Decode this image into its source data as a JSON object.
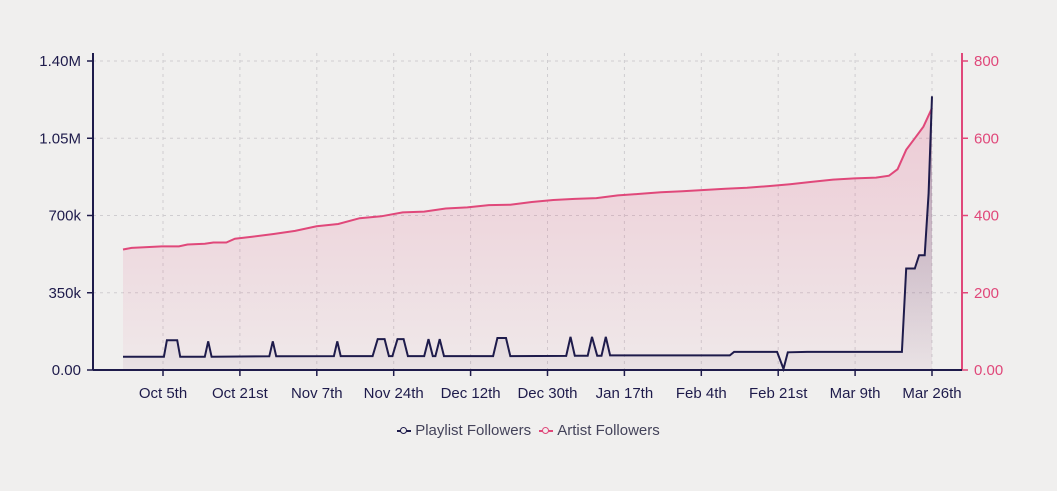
{
  "chart_data": {
    "type": "area",
    "x_ticks": [
      "Oct 5th",
      "Oct 21st",
      "Nov 7th",
      "Nov 24th",
      "Dec 12th",
      "Dec 30th",
      "Jan 17th",
      "Feb 4th",
      "Feb 21st",
      "Mar 9th",
      "Mar 26th"
    ],
    "y_left": {
      "ticks": [
        "0.00",
        "350k",
        "700k",
        "1.05M",
        "1.40M"
      ],
      "range": [
        0,
        1400000
      ]
    },
    "y_right": {
      "ticks": [
        "0.00",
        "200",
        "400",
        "600",
        "800"
      ],
      "range": [
        0,
        800
      ]
    },
    "x_range_days": [
      0,
      188
    ],
    "grid": true,
    "legend_position": "bottom",
    "series": [
      {
        "name": "Playlist Followers",
        "axis": "left",
        "color": "#1e1b4b",
        "points": [
          [
            0,
            60000
          ],
          [
            9.5,
            60000
          ],
          [
            10.2,
            135000
          ],
          [
            12.6,
            135000
          ],
          [
            13.3,
            60000
          ],
          [
            19,
            60000
          ],
          [
            19.8,
            130000
          ],
          [
            20.6,
            60000
          ],
          [
            34,
            62000
          ],
          [
            34.8,
            130000
          ],
          [
            35.6,
            62000
          ],
          [
            49,
            63000
          ],
          [
            49.8,
            130000
          ],
          [
            50.6,
            63000
          ],
          [
            58,
            63000
          ],
          [
            59.2,
            140000
          ],
          [
            60.8,
            140000
          ],
          [
            61.8,
            63000
          ],
          [
            62.6,
            63000
          ],
          [
            63.8,
            140000
          ],
          [
            65.2,
            140000
          ],
          [
            66.2,
            63000
          ],
          [
            70,
            63000
          ],
          [
            71,
            140000
          ],
          [
            72,
            63000
          ],
          [
            72.6,
            63000
          ],
          [
            73.6,
            140000
          ],
          [
            74.6,
            63000
          ],
          [
            86,
            63000
          ],
          [
            87,
            145000
          ],
          [
            89,
            145000
          ],
          [
            90,
            63000
          ],
          [
            103,
            64000
          ],
          [
            104,
            150000
          ],
          [
            105,
            65000
          ],
          [
            108,
            65000
          ],
          [
            109,
            150000
          ],
          [
            110.2,
            65000
          ],
          [
            111.2,
            65000
          ],
          [
            112.2,
            150000
          ],
          [
            113.2,
            66000
          ],
          [
            135,
            66000
          ],
          [
            141,
            66000
          ],
          [
            142,
            82000
          ],
          [
            152,
            82000
          ],
          [
            153.5,
            5000
          ],
          [
            154.5,
            80000
          ],
          [
            159,
            82000
          ],
          [
            181,
            82000
          ],
          [
            182,
            460000
          ],
          [
            184,
            460000
          ],
          [
            185,
            520000
          ],
          [
            186.3,
            520000
          ],
          [
            187.2,
            800000
          ],
          [
            188,
            1240000
          ]
        ]
      },
      {
        "name": "Artist Followers",
        "axis": "right",
        "color": "#e0487a",
        "points": [
          [
            0,
            312
          ],
          [
            2,
            316
          ],
          [
            5,
            318
          ],
          [
            9,
            320
          ],
          [
            13,
            320
          ],
          [
            15,
            325
          ],
          [
            19,
            327
          ],
          [
            21,
            330
          ],
          [
            24,
            330
          ],
          [
            26,
            340
          ],
          [
            30,
            345
          ],
          [
            35,
            352
          ],
          [
            40,
            360
          ],
          [
            45,
            372
          ],
          [
            50,
            378
          ],
          [
            55,
            393
          ],
          [
            60,
            398
          ],
          [
            65,
            408
          ],
          [
            70,
            410
          ],
          [
            75,
            418
          ],
          [
            80,
            421
          ],
          [
            85,
            427
          ],
          [
            90,
            428
          ],
          [
            95,
            435
          ],
          [
            100,
            440
          ],
          [
            105,
            443
          ],
          [
            110,
            445
          ],
          [
            115,
            452
          ],
          [
            120,
            456
          ],
          [
            125,
            460
          ],
          [
            130,
            463
          ],
          [
            135,
            466
          ],
          [
            140,
            469
          ],
          [
            145,
            472
          ],
          [
            150,
            476
          ],
          [
            155,
            481
          ],
          [
            160,
            487
          ],
          [
            165,
            493
          ],
          [
            170,
            496
          ],
          [
            175,
            498
          ],
          [
            178,
            503
          ],
          [
            180,
            520
          ],
          [
            182,
            570
          ],
          [
            184,
            600
          ],
          [
            186,
            630
          ],
          [
            188,
            678
          ]
        ]
      }
    ]
  }
}
